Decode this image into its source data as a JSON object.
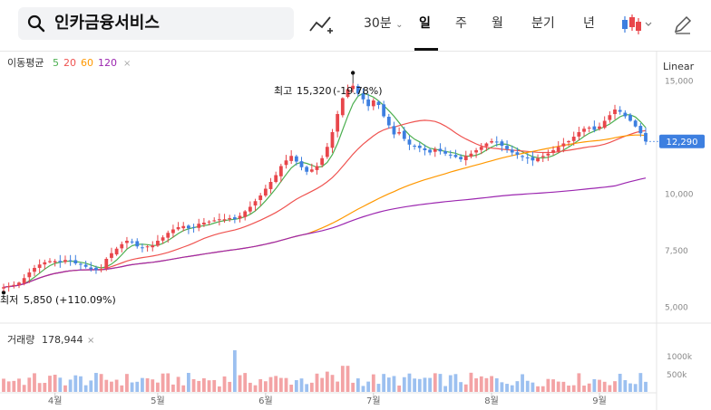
{
  "header": {
    "search_text": "인카금융서비스",
    "period_select": "30분",
    "tabs": [
      "일",
      "주",
      "월",
      "분기",
      "년"
    ],
    "active_tab": "일"
  },
  "chart_data": [
    {
      "type": "candlestick",
      "scale_label": "Linear",
      "ma_legend": {
        "label": "이동평균",
        "periods": [
          5,
          20,
          60,
          120
        ],
        "colors": [
          "#4caf50",
          "#ef5350",
          "#ff9800",
          "#9c27b0"
        ]
      },
      "x_labels": [
        "4월",
        "5월",
        "6월",
        "7월",
        "8월",
        "9월"
      ],
      "y_ticks": [
        5000,
        7500,
        10000,
        12500,
        15000
      ],
      "y_tick_labels": [
        "5,000",
        "7,500",
        "10,000",
        "",
        "15,000"
      ],
      "ylim": [
        4300,
        16300
      ],
      "last_price": 12290,
      "last_price_label": "12,290",
      "high_label": {
        "name": "최고",
        "value": "15,320",
        "change": "(-19.78%)"
      },
      "low_label": {
        "name": "최저",
        "value": "5,850",
        "change": "(+110.09%)"
      },
      "up_color": "#e8464b",
      "down_color": "#3d7fe0",
      "close": [
        5850,
        5900,
        5950,
        6050,
        6250,
        6500,
        6700,
        6850,
        6950,
        7000,
        7000,
        6950,
        7050,
        7000,
        6900,
        6850,
        6750,
        6650,
        6600,
        6650,
        7100,
        7350,
        7550,
        7750,
        7900,
        7850,
        7650,
        7600,
        7650,
        7700,
        7900,
        8050,
        8250,
        8400,
        8500,
        8550,
        8450,
        8500,
        8650,
        8700,
        8750,
        8800,
        8850,
        8850,
        8900,
        8850,
        9000,
        9200,
        9400,
        9650,
        9900,
        10200,
        10500,
        10800,
        11200,
        11450,
        11650,
        11400,
        11150,
        10950,
        11050,
        11200,
        11550,
        12050,
        12700,
        13500,
        14200,
        14600,
        14750,
        14400,
        14150,
        13850,
        14100,
        13900,
        13400,
        13000,
        12600,
        12700,
        12400,
        12150,
        12100,
        12000,
        11900,
        11800,
        11950,
        11850,
        11750,
        11700,
        11600,
        11500,
        11650,
        11750,
        11900,
        12050,
        12200,
        12300,
        12250,
        12100,
        11950,
        11800,
        11700,
        11600,
        11550,
        11450,
        11550,
        11650,
        11750,
        11900,
        12050,
        12200,
        12300,
        12500,
        12700,
        12850,
        12900,
        12800,
        12950,
        13200,
        13450,
        13700,
        13600,
        13400,
        13200,
        12950,
        12650,
        12290
      ],
      "volume_label": "거래량",
      "volume_value": "178,944",
      "volume_ticks": [
        500000,
        1000000
      ],
      "volume_tick_labels": [
        "500k",
        "1000k"
      ],
      "volume_max": 1250000
    }
  ]
}
